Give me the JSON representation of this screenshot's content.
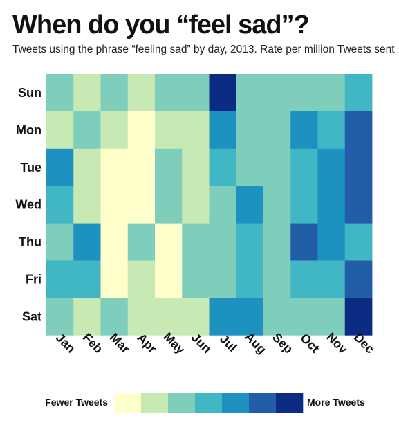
{
  "header": {
    "title": "When do you “feel sad”?",
    "subtitle": "Tweets using the phrase “feeling sad” by day, 2013. Rate per million Tweets sent"
  },
  "chart_data": {
    "type": "heatmap",
    "title": "When do you “feel sad”?",
    "subtitle": "Tweets using the phrase “feeling sad” by day, 2013. Rate per million Tweets sent",
    "x_categories": [
      "Jan",
      "Feb",
      "Mar",
      "Apr",
      "May",
      "Jun",
      "Jul",
      "Aug",
      "Sep",
      "Oct",
      "Nov",
      "Dec"
    ],
    "y_categories": [
      "Sun",
      "Mon",
      "Tue",
      "Wed",
      "Thu",
      "Fri",
      "Sat"
    ],
    "scale_levels": 7,
    "values": [
      [
        3,
        2,
        3,
        2,
        3,
        3,
        7,
        3,
        3,
        3,
        3,
        4
      ],
      [
        2,
        3,
        2,
        1,
        2,
        2,
        5,
        3,
        3,
        5,
        4,
        6
      ],
      [
        5,
        2,
        1,
        1,
        3,
        2,
        4,
        3,
        3,
        4,
        5,
        6
      ],
      [
        4,
        2,
        1,
        1,
        3,
        2,
        3,
        5,
        3,
        4,
        5,
        6
      ],
      [
        3,
        5,
        1,
        3,
        1,
        3,
        3,
        4,
        3,
        6,
        5,
        4
      ],
      [
        4,
        4,
        1,
        2,
        1,
        3,
        3,
        4,
        3,
        4,
        4,
        6
      ],
      [
        3,
        2,
        3,
        2,
        2,
        2,
        5,
        5,
        3,
        3,
        3,
        7
      ]
    ],
    "legend": {
      "low_label": "Fewer Tweets",
      "high_label": "More Tweets",
      "colors": [
        "#ffffcc",
        "#c7e9b4",
        "#7fcdbb",
        "#41b6c4",
        "#1d91c0",
        "#225ea8",
        "#0c2c84"
      ]
    }
  }
}
